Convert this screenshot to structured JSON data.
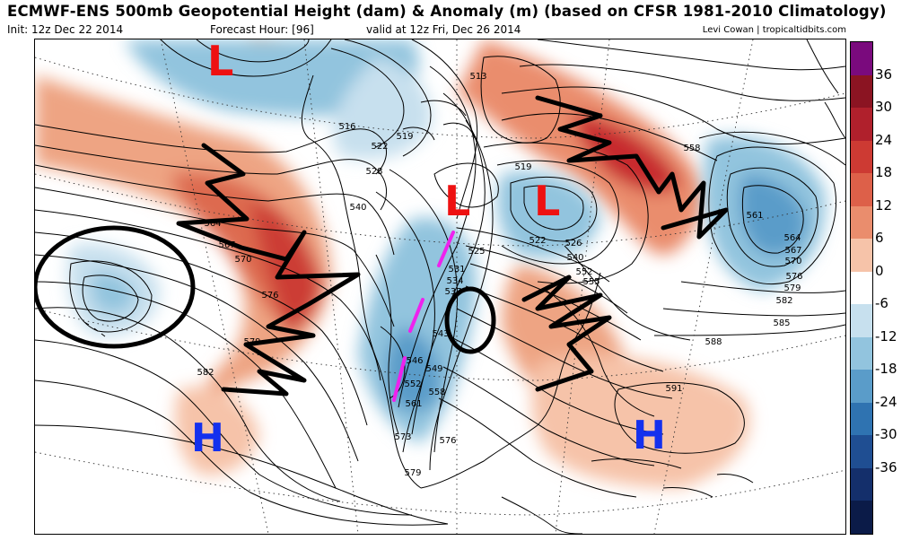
{
  "header": {
    "title": "ECMWF-ENS 500mb Geopotential Height (dam) & Anomaly (m) (based on CFSR 1981-2010 Climatology)",
    "init": "Init: 12z Dec 22 2014",
    "forecast_hour": "Forecast Hour: [96]",
    "valid": "valid at 12z Fri, Dec 26 2014",
    "credit": "Levi Cowan | tropicaltidbits.com"
  },
  "colorbar": {
    "labels": [
      "36",
      "30",
      "24",
      "18",
      "12",
      "6",
      "0",
      "-6",
      "-12",
      "-18",
      "-24",
      "-30",
      "-36"
    ],
    "colors": [
      "#7a0a7d",
      "#8b1422",
      "#b0202c",
      "#cd3a33",
      "#dd6049",
      "#ea8d6d",
      "#f6c3a9",
      "#ffffff",
      "#c7e0ee",
      "#92c4de",
      "#5a9cc9",
      "#2f73b1",
      "#1f4e92",
      "#142f6b",
      "#0b1b48"
    ]
  },
  "contour_labels": [
    "513",
    "516",
    "519",
    "519",
    "522",
    "522",
    "525",
    "526",
    "528",
    "531",
    "534",
    "537",
    "540",
    "540",
    "543",
    "546",
    "549",
    "552",
    "552",
    "555",
    "558",
    "558",
    "561",
    "561",
    "564",
    "564",
    "567",
    "567",
    "570",
    "570",
    "573",
    "576",
    "576",
    "576",
    "579",
    "579",
    "579",
    "582",
    "582",
    "585",
    "588",
    "591"
  ],
  "annotations": {
    "low_label": "L",
    "high_label": "H"
  }
}
